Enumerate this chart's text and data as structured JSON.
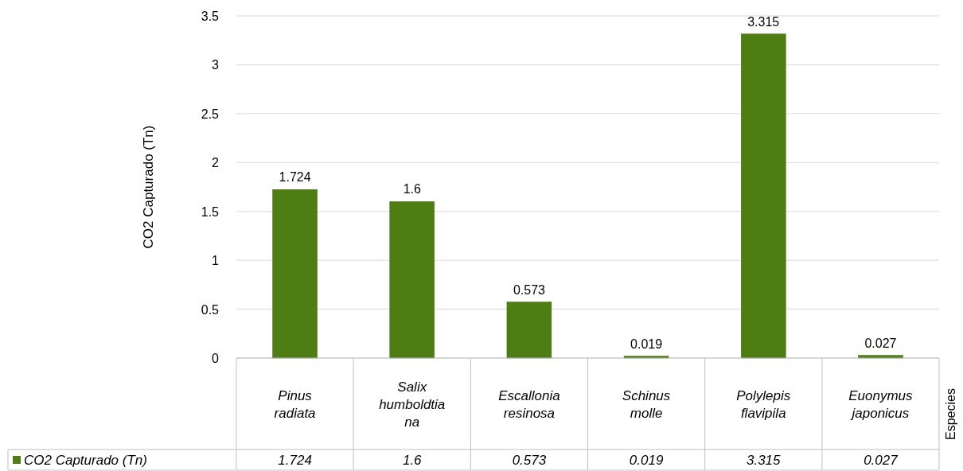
{
  "chart_data": {
    "type": "bar",
    "ylabel": "CO2 Capturado (Tn)",
    "annotations": [
      "Especies"
    ],
    "categories": [
      "Pinus radiata",
      "Salix humboldtiana",
      "Escallonia resinosa",
      "Schinus molle",
      "Polylepis flavipila",
      "Euonymus japonicus"
    ],
    "series": [
      {
        "name": "CO2 Capturado (Tn)",
        "color": "#4e7d14",
        "values": [
          1.724,
          1.6,
          0.573,
          0.019,
          3.315,
          0.027
        ],
        "value_labels": [
          "1.724",
          "1.6",
          "0.573",
          "0.019",
          "3.315",
          "0.027"
        ]
      }
    ],
    "ylim": [
      0,
      3.5
    ],
    "yticks": [
      0,
      0.5,
      1,
      1.5,
      2,
      2.5,
      3,
      3.5
    ],
    "grid": "y",
    "data_labels": true,
    "legend": "bottom"
  }
}
